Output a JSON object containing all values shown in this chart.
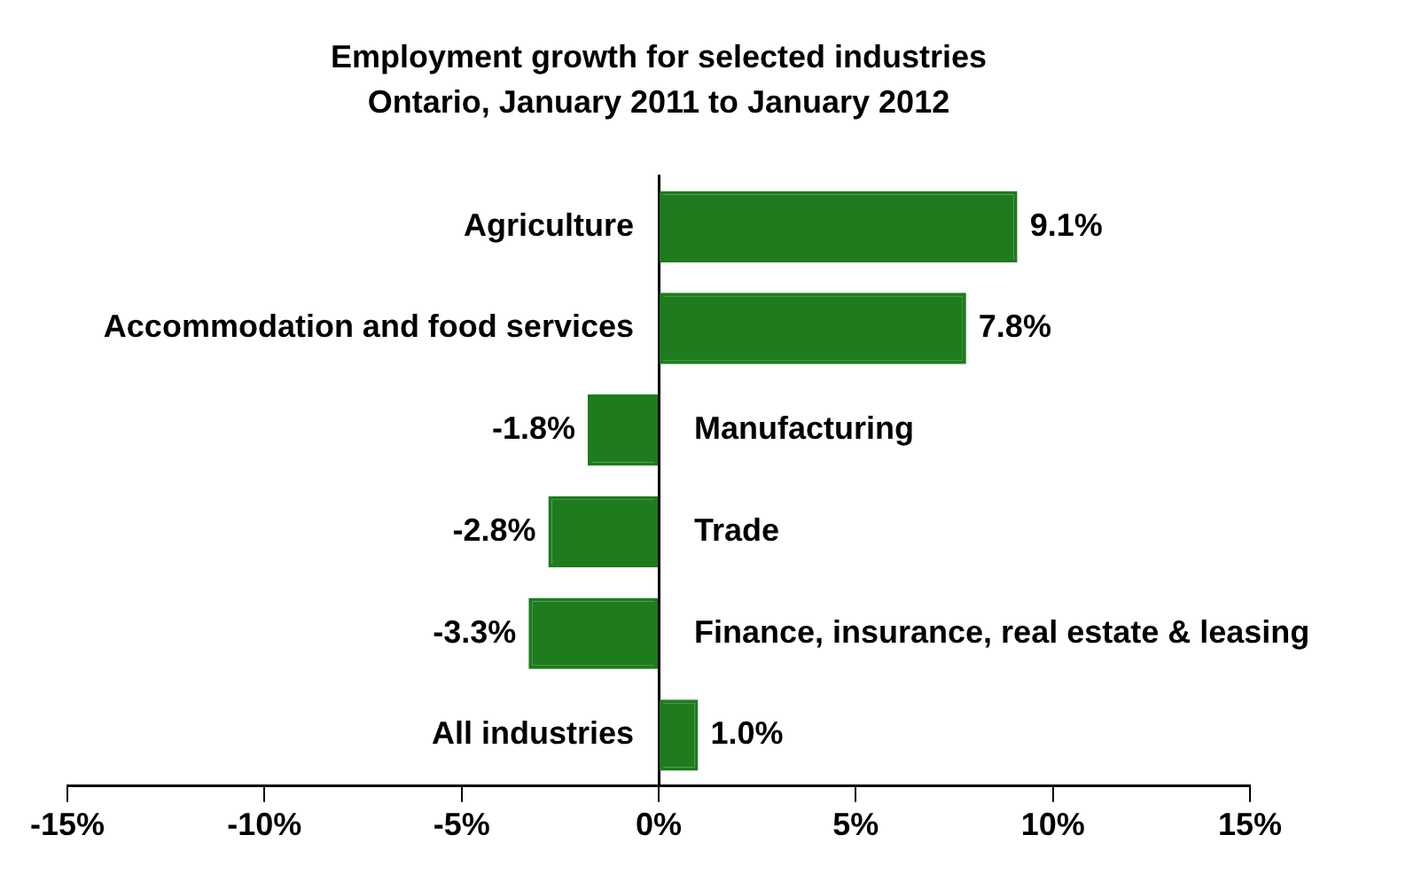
{
  "chart_data": {
    "type": "bar",
    "orientation": "horizontal",
    "title": "Employment growth for selected industries",
    "subtitle": "Ontario, January 2011 to January 2012",
    "categories": [
      "Agriculture",
      "Accommodation and food services",
      "Manufacturing",
      "Trade",
      "Finance, insurance, real estate & leasing",
      "All industries"
    ],
    "values": [
      9.1,
      7.8,
      -1.8,
      -2.8,
      -3.3,
      1.0
    ],
    "color": "#1e7b1e",
    "value_labels": [
      "9.1%",
      "7.8%",
      "-1.8%",
      "-2.8%",
      "-3.3%",
      "1.0%"
    ],
    "xlim": [
      -15,
      15
    ],
    "xticks": [
      {
        "value": -15,
        "label": "-15%"
      },
      {
        "value": -10,
        "label": "-10%"
      },
      {
        "value": -5,
        "label": "-5%"
      },
      {
        "value": 0,
        "label": "0%"
      },
      {
        "value": 5,
        "label": "5%"
      },
      {
        "value": 10,
        "label": "10%"
      },
      {
        "value": 15,
        "label": "15%"
      }
    ],
    "grid": false,
    "legend": false
  }
}
